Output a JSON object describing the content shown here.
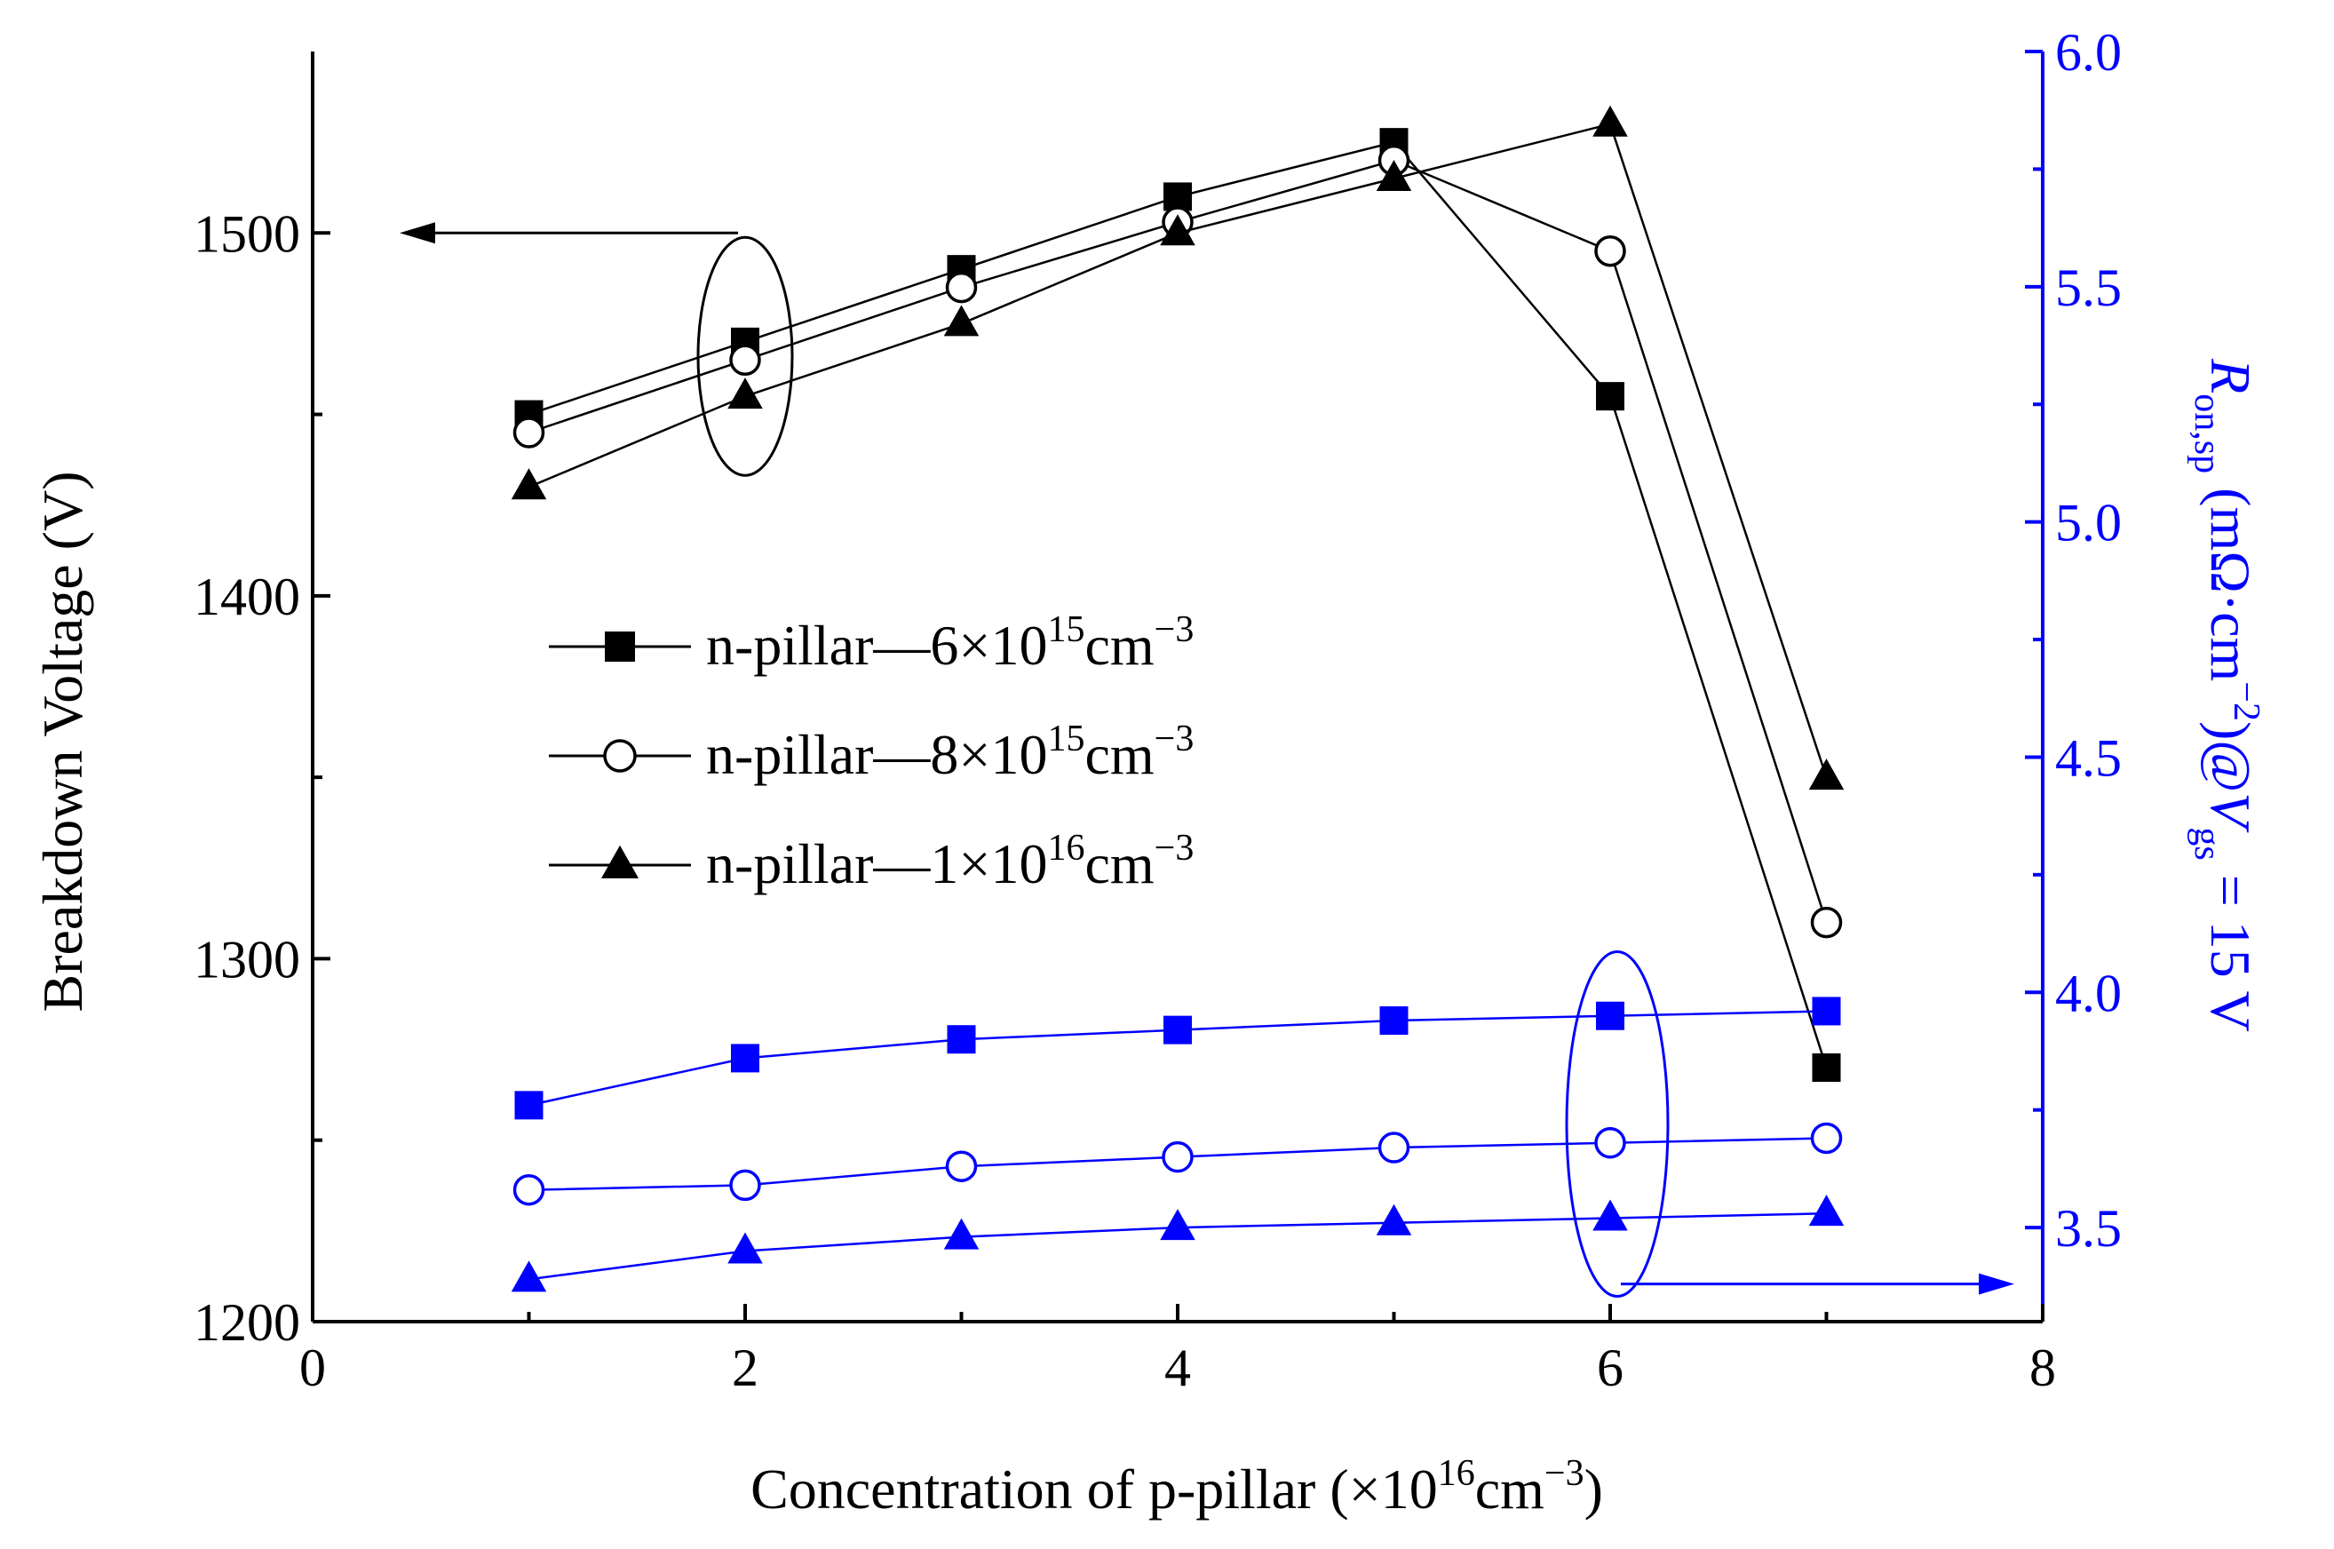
{
  "chart_data": {
    "type": "line",
    "x": [
      1,
      2,
      3,
      4,
      5,
      6,
      7
    ],
    "xlabel": {
      "main": "Concentration of p-pillar (×10",
      "exp1": "16",
      "mid": "cm",
      "exp2": "−3",
      "end": ")"
    },
    "xlim": [
      0,
      8
    ],
    "xticks": [
      "0",
      "2",
      "4",
      "6",
      "8"
    ],
    "y_left": {
      "label": "Breakdown Voltage (V)",
      "lim": [
        1200,
        1550
      ],
      "ticks": [
        "1200",
        "1300",
        "1400",
        "1500"
      ],
      "color": "#000000"
    },
    "y_right": {
      "label": {
        "R": "R",
        "sub": "on,sp",
        "unit": " (mΩ·cm",
        "sup": "−2",
        "at": ")@",
        "V": "V",
        "vsub": "gs",
        "end": " = 15 V"
      },
      "lim": [
        3.3,
        6.0
      ],
      "ticks": [
        "3.5",
        "4.0",
        "4.5",
        "5.0",
        "5.5",
        "6.0"
      ],
      "color": "#0000ff"
    },
    "series_breakdown": [
      {
        "marker": "square",
        "values": [
          1450,
          1470,
          1490,
          1510,
          1525,
          1455,
          1270
        ]
      },
      {
        "marker": "circle",
        "values": [
          1445,
          1465,
          1485,
          1503,
          1520,
          1495,
          1310
        ]
      },
      {
        "marker": "triangle",
        "values": [
          1430,
          1455,
          1475,
          1500,
          1515,
          1530,
          1350
        ]
      }
    ],
    "series_ron": [
      {
        "marker": "square",
        "values": [
          3.76,
          3.86,
          3.9,
          3.92,
          3.94,
          3.95,
          3.96
        ]
      },
      {
        "marker": "circle",
        "values": [
          3.58,
          3.59,
          3.63,
          3.65,
          3.67,
          3.68,
          3.69
        ]
      },
      {
        "marker": "triangle",
        "values": [
          3.39,
          3.45,
          3.48,
          3.5,
          3.51,
          3.52,
          3.53
        ]
      }
    ],
    "legend": [
      {
        "marker": "square",
        "text": "n-pillar—6×10",
        "exp1": "15",
        "unit": "cm",
        "exp2": "−3"
      },
      {
        "marker": "circle",
        "text": "n-pillar—8×10",
        "exp1": "15",
        "unit": "cm",
        "exp2": "−3"
      },
      {
        "marker": "triangle",
        "text": "n-pillar—1×10",
        "exp1": "16",
        "unit": "cm",
        "exp2": "−3"
      }
    ]
  }
}
